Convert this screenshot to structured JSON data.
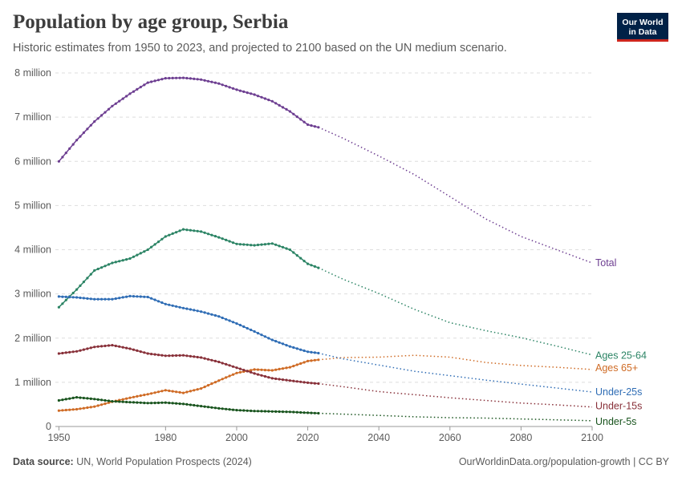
{
  "header": {
    "title": "Population by age group, Serbia",
    "subtitle": "Historic estimates from 1950 to 2023, and projected to 2100 based on the UN medium scenario."
  },
  "logo": {
    "line1": "Our World",
    "line2": "in Data",
    "background": "#002147",
    "accent": "#ce261e"
  },
  "footer": {
    "source_label": "Data source:",
    "source_text": " UN, World Population Prospects (2024)",
    "url": "OurWorldinData.org/population-growth | CC BY"
  },
  "chart_data": {
    "type": "line",
    "title": "Population by age group, Serbia",
    "xlim": [
      1949,
      2100
    ],
    "ylim": [
      0,
      8000000
    ],
    "x_ticks": [
      1950,
      1980,
      2000,
      2020,
      2040,
      2060,
      2080,
      2100
    ],
    "y_ticks": [
      {
        "value": 0,
        "label": "0"
      },
      {
        "value": 1000000,
        "label": "1 million"
      },
      {
        "value": 2000000,
        "label": "2 million"
      },
      {
        "value": 3000000,
        "label": "3 million"
      },
      {
        "value": 4000000,
        "label": "4 million"
      },
      {
        "value": 5000000,
        "label": "5 million"
      },
      {
        "value": 6000000,
        "label": "6 million"
      },
      {
        "value": 7000000,
        "label": "7 million"
      },
      {
        "value": 8000000,
        "label": "8 million"
      }
    ],
    "grid": true,
    "projection_start": 2023,
    "legend_placement": "right-end labels",
    "series": [
      {
        "name": "Total",
        "color": "#6d3e91",
        "historic": [
          [
            1950,
            6000000
          ],
          [
            1955,
            6480000
          ],
          [
            1960,
            6900000
          ],
          [
            1965,
            7250000
          ],
          [
            1970,
            7530000
          ],
          [
            1975,
            7780000
          ],
          [
            1980,
            7880000
          ],
          [
            1985,
            7890000
          ],
          [
            1990,
            7850000
          ],
          [
            1995,
            7760000
          ],
          [
            2000,
            7620000
          ],
          [
            2005,
            7510000
          ],
          [
            2010,
            7360000
          ],
          [
            2015,
            7130000
          ],
          [
            2020,
            6830000
          ],
          [
            2023,
            6770000
          ]
        ],
        "projected": [
          [
            2023,
            6770000
          ],
          [
            2030,
            6520000
          ],
          [
            2040,
            6120000
          ],
          [
            2050,
            5700000
          ],
          [
            2060,
            5200000
          ],
          [
            2070,
            4700000
          ],
          [
            2080,
            4300000
          ],
          [
            2090,
            4000000
          ],
          [
            2100,
            3700000
          ]
        ]
      },
      {
        "name": "Ages 25-64",
        "color": "#2c8465",
        "historic": [
          [
            1950,
            2700000
          ],
          [
            1955,
            3100000
          ],
          [
            1960,
            3530000
          ],
          [
            1965,
            3700000
          ],
          [
            1970,
            3800000
          ],
          [
            1975,
            4000000
          ],
          [
            1980,
            4300000
          ],
          [
            1985,
            4460000
          ],
          [
            1990,
            4410000
          ],
          [
            1995,
            4280000
          ],
          [
            2000,
            4130000
          ],
          [
            2005,
            4100000
          ],
          [
            2010,
            4140000
          ],
          [
            2015,
            4000000
          ],
          [
            2020,
            3680000
          ],
          [
            2023,
            3590000
          ]
        ],
        "projected": [
          [
            2023,
            3590000
          ],
          [
            2030,
            3330000
          ],
          [
            2040,
            3010000
          ],
          [
            2050,
            2650000
          ],
          [
            2060,
            2350000
          ],
          [
            2070,
            2170000
          ],
          [
            2080,
            2010000
          ],
          [
            2090,
            1820000
          ],
          [
            2100,
            1620000
          ]
        ]
      },
      {
        "name": "Ages 65+",
        "color": "#cf6b25",
        "historic": [
          [
            1950,
            360000
          ],
          [
            1955,
            390000
          ],
          [
            1960,
            450000
          ],
          [
            1965,
            560000
          ],
          [
            1970,
            650000
          ],
          [
            1975,
            730000
          ],
          [
            1980,
            820000
          ],
          [
            1985,
            760000
          ],
          [
            1990,
            860000
          ],
          [
            1995,
            1040000
          ],
          [
            2000,
            1210000
          ],
          [
            2005,
            1290000
          ],
          [
            2010,
            1270000
          ],
          [
            2015,
            1340000
          ],
          [
            2020,
            1480000
          ],
          [
            2023,
            1510000
          ]
        ],
        "projected": [
          [
            2023,
            1510000
          ],
          [
            2030,
            1560000
          ],
          [
            2040,
            1570000
          ],
          [
            2050,
            1610000
          ],
          [
            2060,
            1570000
          ],
          [
            2070,
            1450000
          ],
          [
            2080,
            1380000
          ],
          [
            2090,
            1340000
          ],
          [
            2100,
            1290000
          ]
        ]
      },
      {
        "name": "Under-25s",
        "color": "#2f6db5",
        "historic": [
          [
            1950,
            2940000
          ],
          [
            1955,
            2920000
          ],
          [
            1960,
            2880000
          ],
          [
            1965,
            2880000
          ],
          [
            1970,
            2950000
          ],
          [
            1975,
            2930000
          ],
          [
            1980,
            2770000
          ],
          [
            1985,
            2680000
          ],
          [
            1990,
            2600000
          ],
          [
            1995,
            2490000
          ],
          [
            2000,
            2330000
          ],
          [
            2005,
            2150000
          ],
          [
            2010,
            1960000
          ],
          [
            2015,
            1810000
          ],
          [
            2020,
            1690000
          ],
          [
            2023,
            1660000
          ]
        ],
        "projected": [
          [
            2023,
            1660000
          ],
          [
            2030,
            1530000
          ],
          [
            2040,
            1390000
          ],
          [
            2050,
            1250000
          ],
          [
            2060,
            1150000
          ],
          [
            2070,
            1050000
          ],
          [
            2080,
            960000
          ],
          [
            2090,
            870000
          ],
          [
            2100,
            780000
          ]
        ]
      },
      {
        "name": "Under-15s",
        "color": "#883039",
        "historic": [
          [
            1950,
            1650000
          ],
          [
            1955,
            1700000
          ],
          [
            1960,
            1800000
          ],
          [
            1965,
            1840000
          ],
          [
            1970,
            1760000
          ],
          [
            1975,
            1650000
          ],
          [
            1980,
            1600000
          ],
          [
            1985,
            1610000
          ],
          [
            1990,
            1560000
          ],
          [
            1995,
            1460000
          ],
          [
            2000,
            1330000
          ],
          [
            2005,
            1200000
          ],
          [
            2010,
            1090000
          ],
          [
            2015,
            1040000
          ],
          [
            2020,
            990000
          ],
          [
            2023,
            970000
          ]
        ],
        "projected": [
          [
            2023,
            970000
          ],
          [
            2030,
            900000
          ],
          [
            2040,
            790000
          ],
          [
            2050,
            720000
          ],
          [
            2060,
            650000
          ],
          [
            2070,
            590000
          ],
          [
            2080,
            530000
          ],
          [
            2090,
            490000
          ],
          [
            2100,
            440000
          ]
        ]
      },
      {
        "name": "Under-5s",
        "color": "#19541e",
        "historic": [
          [
            1950,
            590000
          ],
          [
            1955,
            660000
          ],
          [
            1960,
            620000
          ],
          [
            1965,
            570000
          ],
          [
            1970,
            550000
          ],
          [
            1975,
            530000
          ],
          [
            1980,
            540000
          ],
          [
            1985,
            510000
          ],
          [
            1990,
            460000
          ],
          [
            1995,
            410000
          ],
          [
            2000,
            370000
          ],
          [
            2005,
            350000
          ],
          [
            2010,
            340000
          ],
          [
            2015,
            330000
          ],
          [
            2020,
            310000
          ],
          [
            2023,
            300000
          ]
        ],
        "projected": [
          [
            2023,
            300000
          ],
          [
            2030,
            280000
          ],
          [
            2040,
            250000
          ],
          [
            2050,
            220000
          ],
          [
            2060,
            200000
          ],
          [
            2070,
            190000
          ],
          [
            2080,
            170000
          ],
          [
            2090,
            150000
          ],
          [
            2100,
            130000
          ]
        ]
      }
    ]
  }
}
